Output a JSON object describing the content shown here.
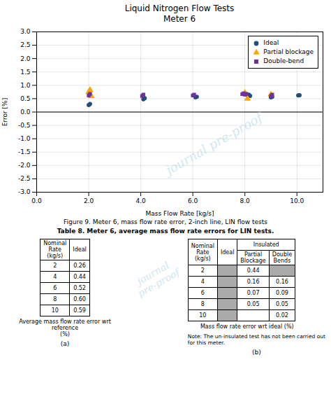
{
  "chart_data": [
    {
      "type": "scatter",
      "title": "Liquid Nitrogen Flow Tests",
      "subtitle": "Meter 6",
      "xlabel": "Mass Flow Rate [kg/s]",
      "ylabel": "Error [%]",
      "xlim": [
        0.0,
        11.0
      ],
      "ylim": [
        -3.0,
        3.0
      ],
      "xticks": [
        {
          "value": 0,
          "label": "0.0"
        },
        {
          "value": 2,
          "label": "2.0"
        },
        {
          "value": 4,
          "label": "4.0"
        },
        {
          "value": 6,
          "label": "6.0"
        },
        {
          "value": 8,
          "label": "8.0"
        },
        {
          "value": 10,
          "label": "10.0"
        }
      ],
      "yticks": [
        {
          "value": -3,
          "label": "-3.0"
        },
        -2.5,
        {
          "value": -2,
          "label": "-2.0"
        },
        -1.5,
        {
          "value": -1,
          "label": "-1.0"
        },
        -0.5,
        {
          "value": 0,
          "label": "0.0"
        },
        0.5,
        {
          "value": 1,
          "label": "1.0"
        },
        1.5,
        {
          "value": 2,
          "label": "2.0"
        },
        2.5,
        {
          "value": 3,
          "label": "3.0"
        }
      ],
      "grid": true,
      "legend": "upper-right",
      "series": [
        {
          "name": "Ideal",
          "color": "#1f4e79",
          "marker": "circle",
          "x": [
            2.0,
            2.05,
            4.1,
            4.15,
            6.1,
            6.15,
            8.1,
            8.15,
            8.2,
            9.0,
            9.05,
            10.05,
            10.1
          ],
          "values": [
            0.26,
            0.3,
            0.48,
            0.52,
            0.55,
            0.57,
            0.63,
            0.65,
            0.6,
            0.55,
            0.57,
            0.62,
            0.63
          ]
        },
        {
          "name": "Partial blockage",
          "color": "#FFA500",
          "marker": "triangle",
          "x": [
            2.0,
            2.05,
            2.1,
            8.0,
            8.1,
            9.0
          ],
          "values": [
            0.75,
            0.82,
            0.6,
            0.72,
            0.5,
            0.65
          ]
        },
        {
          "name": "Double-bend",
          "color": "#7030A0",
          "marker": "square",
          "x": [
            2.0,
            2.05,
            4.05,
            4.1,
            6.0,
            6.05,
            7.9,
            7.95,
            8.0,
            8.05,
            9.0,
            9.05
          ],
          "values": [
            0.62,
            0.68,
            0.6,
            0.65,
            0.62,
            0.65,
            0.67,
            0.7,
            0.65,
            0.68,
            0.6,
            0.65
          ]
        }
      ],
      "annotations": [
        {
          "type": "hline",
          "y": 0
        },
        {
          "type": "watermark",
          "text": "journal pre-proof"
        }
      ],
      "caption": "Figure 9. Meter 6, mass flow rate error, 2-inch line, LIN flow tests"
    },
    {
      "type": "tables",
      "title": "Table 8. Meter 6, average mass flow rate errors for LIN tests.",
      "annotations": [
        {
          "type": "watermark",
          "text": "journal\npre-proof"
        }
      ],
      "tables": [
        {
          "type": "table",
          "columns": [
            "Nominal\nRate\n(kg/s)",
            "Ideal"
          ],
          "rows": [
            [
              "2",
              "0.26"
            ],
            [
              "4",
              "0.44"
            ],
            [
              "6",
              "0.52"
            ],
            [
              "8",
              "0.60"
            ],
            [
              "10",
              "0.59"
            ]
          ],
          "caption": "Average mass flow rate error wrt reference\n(%)",
          "label": "(a)"
        },
        {
          "type": "table",
          "columns": [
            "Nominal\nRate\n(kg/s)",
            "Ideal",
            "Partial\nBlockage",
            "Double\nBends"
          ],
          "column_groups": [
            {
              "name": "Insulated",
              "columns": [
                "Partial\nBlockage",
                "Double\nBends"
              ]
            }
          ],
          "rows": [
            [
              "2",
              null,
              "0.44",
              null
            ],
            [
              "4",
              null,
              "0.16",
              "0.16"
            ],
            [
              "6",
              null,
              "0.07",
              "0.09"
            ],
            [
              "8",
              null,
              "0.05",
              "0.05"
            ],
            [
              "10",
              null,
              "",
              "0.02"
            ]
          ],
          "color": "#aaaaaa",
          "caption": "Mass flow rate error wrt ideal (%)",
          "note": "Note: The un-insulated test has not been carried out\nfor this meter.",
          "label": "(b)"
        }
      ]
    }
  ]
}
